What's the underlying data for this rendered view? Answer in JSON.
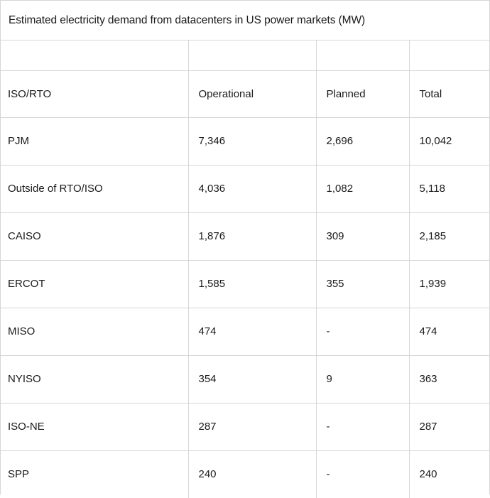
{
  "title": "Estimated electricity demand from datacenters in US power markets (MW)",
  "columns": [
    "ISO/RTO",
    "Operational",
    "Planned",
    "Total"
  ],
  "rows": [
    [
      "PJM",
      "7,346",
      "2,696",
      "10,042"
    ],
    [
      "Outside of RTO/ISO",
      "4,036",
      "1,082",
      "5,118"
    ],
    [
      "CAISO",
      "1,876",
      "309",
      "2,185"
    ],
    [
      "ERCOT",
      "1,585",
      "355",
      "1,939"
    ],
    [
      "MISO",
      "474",
      "-",
      "474"
    ],
    [
      "NYISO",
      "354",
      "9",
      "363"
    ],
    [
      "ISO-NE",
      "287",
      "-",
      "287"
    ],
    [
      "SPP",
      "240",
      "-",
      "240"
    ]
  ]
}
